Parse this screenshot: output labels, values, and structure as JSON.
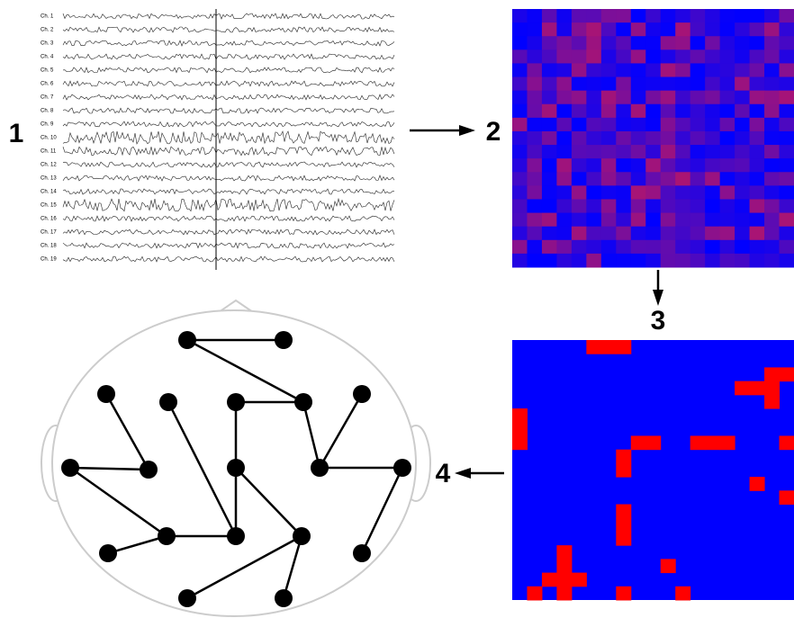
{
  "eeg": {
    "channels": [
      "Ch. 1",
      "Ch. 2",
      "Ch. 3",
      "Ch. 4",
      "Ch. 5",
      "Ch. 6",
      "Ch. 7",
      "Ch. 8",
      "Ch. 9",
      "Ch. 10",
      "Ch. 11",
      "Ch. 12",
      "Ch. 13",
      "Ch. 14",
      "Ch. 15",
      "Ch. 16",
      "Ch. 17",
      "Ch. 18",
      "Ch. 19"
    ]
  },
  "steps": [
    "1",
    "2",
    "3",
    "4"
  ]
}
